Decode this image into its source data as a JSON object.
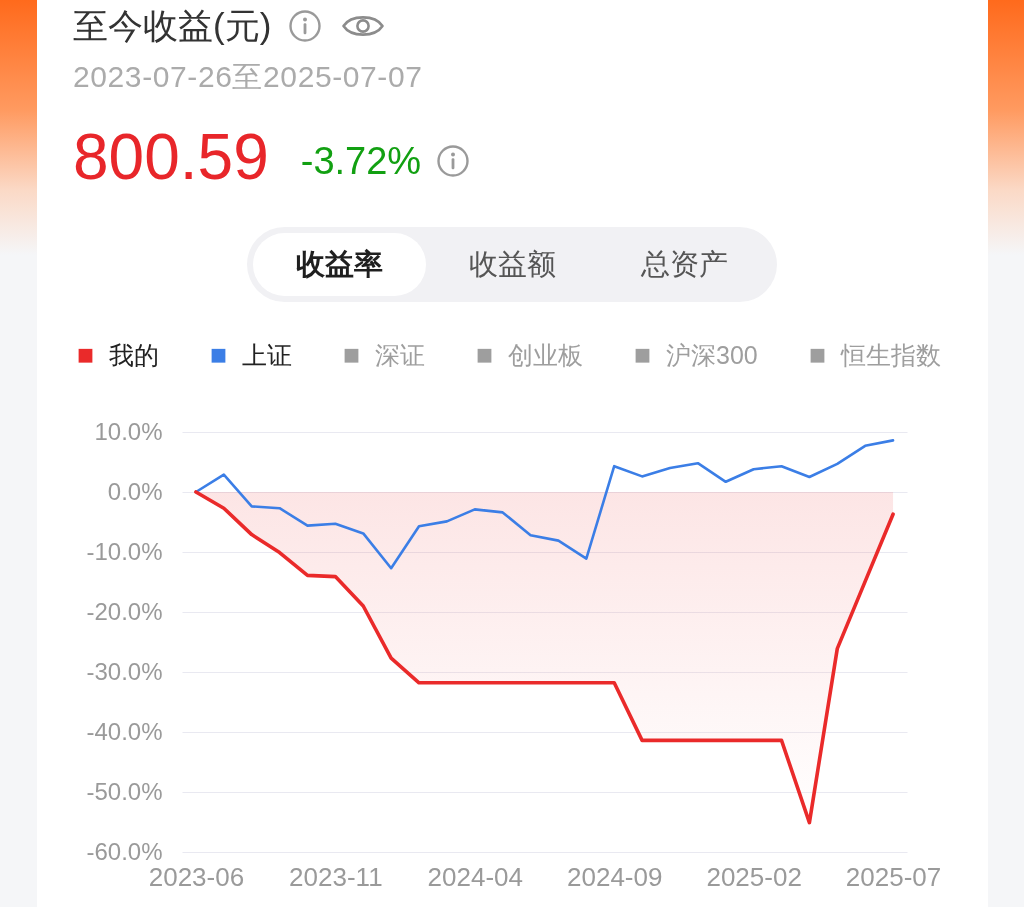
{
  "chart_data": {
    "type": "line",
    "title": "至今收益(元)",
    "subtitle": "2023-07-26至2025-07-07",
    "annotations": [
      "800.59",
      "-3.72%",
      "收益率",
      "收益额",
      "总资产"
    ],
    "categories": [
      "2023-06",
      null,
      null,
      null,
      null,
      "2023-11",
      null,
      null,
      null,
      null,
      "2024-04",
      null,
      null,
      null,
      null,
      "2024-09",
      null,
      null,
      null,
      null,
      "2025-02",
      null,
      null,
      null,
      null,
      "2025-07"
    ],
    "series": [
      {
        "name": "我的",
        "type": "area",
        "color": "#ea2a2a",
        "values": [
          0,
          -2.7,
          -7.1,
          -10.1,
          -13.9,
          -14.1,
          -19.0,
          -27.7,
          -31.8,
          -31.8,
          -31.8,
          -31.8,
          -31.8,
          -31.8,
          -31.8,
          -31.8,
          -41.4,
          -41.4,
          -41.4,
          -41.4,
          -41.4,
          -41.4,
          -55.1,
          -26.1,
          -14.9,
          -3.7
        ]
      },
      {
        "name": "上证",
        "color": "#3b7ee6",
        "values": [
          0,
          2.9,
          -2.4,
          -2.7,
          -5.6,
          -5.3,
          -6.9,
          -12.7,
          -5.7,
          -4.9,
          -2.9,
          -3.4,
          -7.2,
          -8.1,
          -11.1,
          4.3,
          2.6,
          4.0,
          4.8,
          1.7,
          3.8,
          4.3,
          2.5,
          4.7,
          7.7,
          8.6
        ]
      },
      {
        "name": "深证",
        "color": "#9e9e9e",
        "values": [
          null,
          null,
          null,
          null,
          null,
          null,
          null,
          null,
          null,
          null,
          null,
          null,
          null,
          null,
          null,
          null,
          null,
          null,
          null,
          null,
          null,
          null,
          null,
          null,
          null,
          null
        ]
      },
      {
        "name": "创业板",
        "color": "#9e9e9e",
        "values": [
          null,
          null,
          null,
          null,
          null,
          null,
          null,
          null,
          null,
          null,
          null,
          null,
          null,
          null,
          null,
          null,
          null,
          null,
          null,
          null,
          null,
          null,
          null,
          null,
          null,
          null
        ]
      },
      {
        "name": "沪深300",
        "color": "#9e9e9e",
        "values": [
          null,
          null,
          null,
          null,
          null,
          null,
          null,
          null,
          null,
          null,
          null,
          null,
          null,
          null,
          null,
          null,
          null,
          null,
          null,
          null,
          null,
          null,
          null,
          null,
          null,
          null
        ]
      },
      {
        "name": "恒生指数",
        "color": "#9e9e9e",
        "values": [
          null,
          null,
          null,
          null,
          null,
          null,
          null,
          null,
          null,
          null,
          null,
          null,
          null,
          null,
          null,
          null,
          null,
          null,
          null,
          null,
          null,
          null,
          null,
          null,
          null,
          null
        ]
      }
    ],
    "ylim": [
      -60,
      10
    ],
    "yticks": [
      {
        "value": -60,
        "label": "-60.0%"
      },
      {
        "value": -50,
        "label": "-50.0%"
      },
      {
        "value": -40,
        "label": "-40.0%"
      },
      {
        "value": -30,
        "label": "-30.0%"
      },
      {
        "value": -20,
        "label": "-20.0%"
      },
      {
        "value": -10,
        "label": "-10.0%"
      },
      {
        "value": 0,
        "label": "0.0%"
      },
      {
        "value": 10,
        "label": "10.0%"
      }
    ],
    "grid": "y",
    "legend": "top"
  }
}
